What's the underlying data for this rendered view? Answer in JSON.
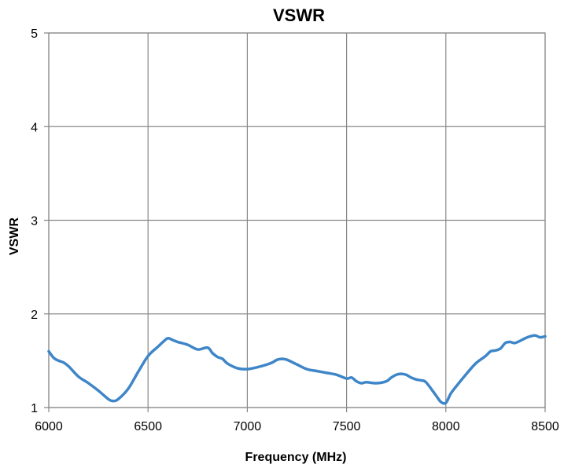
{
  "chart_data": {
    "type": "line",
    "title": "VSWR",
    "xlabel": "Frequency (MHz)",
    "ylabel": "VSWR",
    "xlim": [
      6000,
      8500
    ],
    "ylim": [
      1,
      5
    ],
    "xticks": [
      6000,
      6500,
      7000,
      7500,
      8000,
      8500
    ],
    "yticks": [
      1,
      2,
      3,
      4,
      5
    ],
    "grid": true,
    "series_color": "#3F86C8",
    "series": [
      {
        "x": [
          6000,
          6025,
          6050,
          6075,
          6100,
          6150,
          6200,
          6250,
          6300,
          6325,
          6350,
          6400,
          6450,
          6500,
          6550,
          6575,
          6600,
          6625,
          6650,
          6700,
          6750,
          6800,
          6825,
          6850,
          6875,
          6900,
          6950,
          7000,
          7050,
          7100,
          7125,
          7150,
          7175,
          7200,
          7250,
          7300,
          7350,
          7400,
          7450,
          7500,
          7525,
          7550,
          7575,
          7600,
          7650,
          7700,
          7725,
          7750,
          7775,
          7800,
          7825,
          7850,
          7875,
          7900,
          7950,
          7975,
          8000,
          8025,
          8050,
          8100,
          8150,
          8200,
          8225,
          8250,
          8275,
          8300,
          8325,
          8350,
          8400,
          8425,
          8450,
          8475,
          8500
        ],
        "y": [
          1.6,
          1.53,
          1.5,
          1.48,
          1.44,
          1.33,
          1.26,
          1.18,
          1.09,
          1.07,
          1.09,
          1.2,
          1.38,
          1.55,
          1.65,
          1.7,
          1.74,
          1.72,
          1.7,
          1.67,
          1.62,
          1.64,
          1.58,
          1.54,
          1.52,
          1.47,
          1.42,
          1.41,
          1.43,
          1.46,
          1.48,
          1.51,
          1.52,
          1.51,
          1.46,
          1.41,
          1.39,
          1.37,
          1.35,
          1.31,
          1.32,
          1.28,
          1.26,
          1.27,
          1.26,
          1.28,
          1.32,
          1.35,
          1.36,
          1.35,
          1.32,
          1.3,
          1.29,
          1.27,
          1.13,
          1.06,
          1.05,
          1.15,
          1.22,
          1.35,
          1.47,
          1.55,
          1.6,
          1.61,
          1.63,
          1.69,
          1.7,
          1.69,
          1.74,
          1.76,
          1.77,
          1.75,
          1.76
        ]
      }
    ]
  }
}
